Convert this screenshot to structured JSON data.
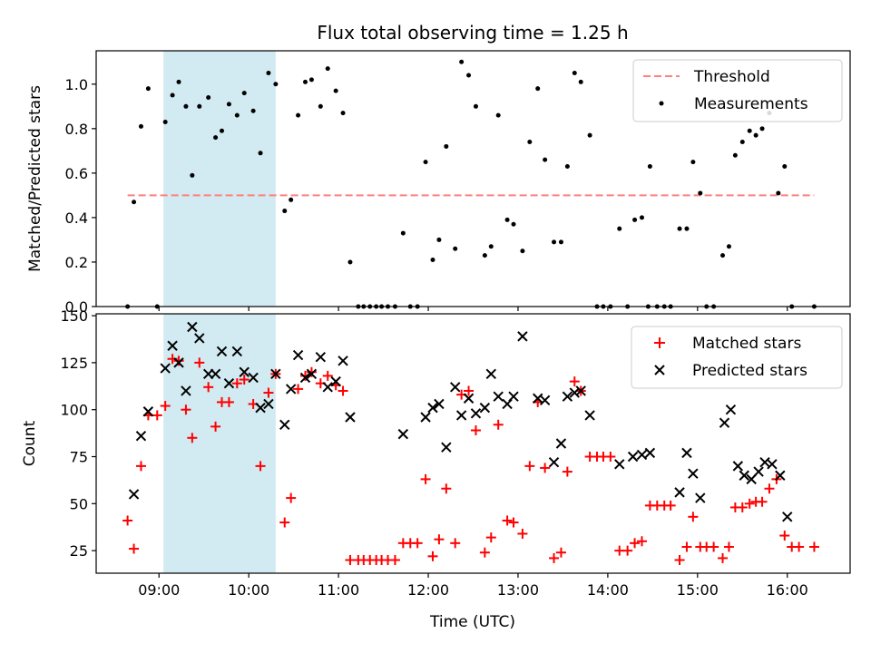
{
  "figure": {
    "title": "Flux total observing time = 1.25 h",
    "xlabel": "Time (UTC)",
    "background": "#ffffff"
  },
  "colors": {
    "threshold": "#ff7f7f",
    "measurement": "#000000",
    "matched": "#ff0000",
    "predicted": "#000000",
    "shaded_region": "#add8e6"
  },
  "chart_data": [
    {
      "type": "scatter",
      "id": "ratio",
      "title": "Flux total observing time = 1.25 h",
      "ylabel": "Matched/Predicted stars",
      "xlim": [
        8.3,
        16.7
      ],
      "ylim": [
        0,
        1.15
      ],
      "x_ticks": [
        9,
        10,
        11,
        12,
        13,
        14,
        15,
        16
      ],
      "y_ticks": [
        0.0,
        0.2,
        0.4,
        0.6,
        0.8,
        1.0
      ],
      "y_tick_labels": [
        "0.0",
        "0.2",
        "0.4",
        "0.6",
        "0.8",
        "1.0"
      ],
      "shaded_region": [
        9.05,
        10.3
      ],
      "threshold": {
        "name": "Threshold",
        "value": 0.5,
        "x_range": [
          8.65,
          16.3
        ]
      },
      "legend": {
        "position": "upper right",
        "entries": [
          "Threshold",
          "Measurements"
        ]
      },
      "series": [
        {
          "name": "Measurements",
          "marker": "dot",
          "points": [
            [
              8.65,
              0.0
            ],
            [
              8.72,
              0.47
            ],
            [
              8.8,
              0.81
            ],
            [
              8.88,
              0.98
            ],
            [
              8.98,
              0.0
            ],
            [
              9.07,
              0.83
            ],
            [
              9.15,
              0.95
            ],
            [
              9.22,
              1.01
            ],
            [
              9.3,
              0.9
            ],
            [
              9.37,
              0.59
            ],
            [
              9.45,
              0.9
            ],
            [
              9.55,
              0.94
            ],
            [
              9.63,
              0.76
            ],
            [
              9.7,
              0.79
            ],
            [
              9.78,
              0.91
            ],
            [
              9.87,
              0.86
            ],
            [
              9.95,
              0.96
            ],
            [
              10.05,
              0.88
            ],
            [
              10.13,
              0.69
            ],
            [
              10.22,
              1.05
            ],
            [
              10.3,
              1.0
            ],
            [
              10.4,
              0.43
            ],
            [
              10.47,
              0.48
            ],
            [
              10.55,
              0.86
            ],
            [
              10.63,
              1.01
            ],
            [
              10.7,
              1.02
            ],
            [
              10.8,
              0.9
            ],
            [
              10.88,
              1.07
            ],
            [
              10.97,
              0.97
            ],
            [
              11.05,
              0.87
            ],
            [
              11.13,
              0.2
            ],
            [
              11.22,
              0.0
            ],
            [
              11.28,
              0.0
            ],
            [
              11.35,
              0.0
            ],
            [
              11.42,
              0.0
            ],
            [
              11.48,
              0.0
            ],
            [
              11.55,
              0.0
            ],
            [
              11.63,
              0.0
            ],
            [
              11.72,
              0.33
            ],
            [
              11.8,
              0.0
            ],
            [
              11.88,
              0.0
            ],
            [
              11.97,
              0.65
            ],
            [
              12.05,
              0.21
            ],
            [
              12.12,
              0.3
            ],
            [
              12.2,
              0.72
            ],
            [
              12.3,
              0.26
            ],
            [
              12.37,
              1.1
            ],
            [
              12.45,
              1.04
            ],
            [
              12.53,
              0.9
            ],
            [
              12.63,
              0.23
            ],
            [
              12.7,
              0.27
            ],
            [
              12.78,
              0.86
            ],
            [
              12.88,
              0.39
            ],
            [
              12.95,
              0.37
            ],
            [
              13.05,
              0.25
            ],
            [
              13.13,
              0.74
            ],
            [
              13.22,
              0.98
            ],
            [
              13.3,
              0.66
            ],
            [
              13.4,
              0.29
            ],
            [
              13.48,
              0.29
            ],
            [
              13.55,
              0.63
            ],
            [
              13.63,
              1.05
            ],
            [
              13.7,
              1.01
            ],
            [
              13.8,
              0.77
            ],
            [
              13.88,
              0.0
            ],
            [
              13.95,
              0.0
            ],
            [
              14.03,
              0.0
            ],
            [
              14.13,
              0.35
            ],
            [
              14.22,
              0.0
            ],
            [
              14.3,
              0.39
            ],
            [
              14.38,
              0.4
            ],
            [
              14.45,
              0.0
            ],
            [
              14.47,
              0.63
            ],
            [
              14.55,
              0.0
            ],
            [
              14.63,
              0.0
            ],
            [
              14.7,
              0.0
            ],
            [
              14.8,
              0.35
            ],
            [
              14.88,
              0.35
            ],
            [
              14.95,
              0.65
            ],
            [
              15.03,
              0.51
            ],
            [
              15.1,
              0.0
            ],
            [
              15.18,
              0.0
            ],
            [
              15.28,
              0.23
            ],
            [
              15.35,
              0.27
            ],
            [
              15.42,
              0.68
            ],
            [
              15.5,
              0.74
            ],
            [
              15.58,
              0.79
            ],
            [
              15.65,
              0.77
            ],
            [
              15.72,
              0.8
            ],
            [
              15.8,
              0.87
            ],
            [
              15.9,
              0.51
            ],
            [
              15.97,
              0.63
            ],
            [
              16.05,
              0.0
            ],
            [
              16.3,
              0.0
            ]
          ]
        }
      ]
    },
    {
      "type": "scatter",
      "id": "counts",
      "ylabel": "Count",
      "xlabel": "Time (UTC)",
      "xlim": [
        8.3,
        16.7
      ],
      "ylim": [
        13,
        151
      ],
      "x_ticks": [
        9,
        10,
        11,
        12,
        13,
        14,
        15,
        16
      ],
      "x_tick_labels": [
        "09:00",
        "10:00",
        "11:00",
        "12:00",
        "13:00",
        "14:00",
        "15:00",
        "16:00"
      ],
      "y_ticks": [
        25,
        50,
        75,
        100,
        125,
        150
      ],
      "y_tick_labels": [
        "25",
        "50",
        "75",
        "100",
        "125",
        "150"
      ],
      "shaded_region": [
        9.05,
        10.3
      ],
      "legend": {
        "position": "upper right",
        "entries": [
          "Matched stars",
          "Predicted stars"
        ]
      },
      "series": [
        {
          "name": "Matched stars",
          "marker": "plus",
          "points": [
            [
              8.65,
              41
            ],
            [
              8.72,
              26
            ],
            [
              8.8,
              70
            ],
            [
              8.88,
              97
            ],
            [
              8.98,
              97
            ],
            [
              9.07,
              102
            ],
            [
              9.15,
              127
            ],
            [
              9.22,
              126
            ],
            [
              9.3,
              100
            ],
            [
              9.37,
              85
            ],
            [
              9.45,
              125
            ],
            [
              9.55,
              112
            ],
            [
              9.63,
              91
            ],
            [
              9.7,
              104
            ],
            [
              9.78,
              104
            ],
            [
              9.87,
              114
            ],
            [
              9.95,
              116
            ],
            [
              10.05,
              103
            ],
            [
              10.13,
              70
            ],
            [
              10.22,
              109
            ],
            [
              10.3,
              119
            ],
            [
              10.4,
              40
            ],
            [
              10.47,
              53
            ],
            [
              10.55,
              111
            ],
            [
              10.63,
              118
            ],
            [
              10.7,
              120
            ],
            [
              10.8,
              114
            ],
            [
              10.88,
              118
            ],
            [
              10.97,
              113
            ],
            [
              11.05,
              110
            ],
            [
              11.13,
              20
            ],
            [
              11.22,
              20
            ],
            [
              11.28,
              20
            ],
            [
              11.35,
              20
            ],
            [
              11.42,
              20
            ],
            [
              11.48,
              20
            ],
            [
              11.55,
              20
            ],
            [
              11.63,
              20
            ],
            [
              11.72,
              29
            ],
            [
              11.8,
              29
            ],
            [
              11.88,
              29
            ],
            [
              11.97,
              63
            ],
            [
              12.05,
              22
            ],
            [
              12.12,
              31
            ],
            [
              12.2,
              58
            ],
            [
              12.3,
              29
            ],
            [
              12.37,
              108
            ],
            [
              12.45,
              110
            ],
            [
              12.53,
              89
            ],
            [
              12.63,
              24
            ],
            [
              12.7,
              32
            ],
            [
              12.78,
              92
            ],
            [
              12.88,
              41
            ],
            [
              12.95,
              40
            ],
            [
              13.05,
              34
            ],
            [
              13.13,
              70
            ],
            [
              13.22,
              104
            ],
            [
              13.3,
              69
            ],
            [
              13.4,
              21
            ],
            [
              13.48,
              24
            ],
            [
              13.55,
              67
            ],
            [
              13.63,
              115
            ],
            [
              13.7,
              110
            ],
            [
              13.8,
              75
            ],
            [
              13.88,
              75
            ],
            [
              13.95,
              75
            ],
            [
              14.03,
              75
            ],
            [
              14.13,
              25
            ],
            [
              14.22,
              25
            ],
            [
              14.3,
              29
            ],
            [
              14.38,
              30
            ],
            [
              14.47,
              49
            ],
            [
              14.55,
              49
            ],
            [
              14.63,
              49
            ],
            [
              14.7,
              49
            ],
            [
              14.8,
              20
            ],
            [
              14.88,
              27
            ],
            [
              14.95,
              43
            ],
            [
              15.03,
              27
            ],
            [
              15.1,
              27
            ],
            [
              15.18,
              27
            ],
            [
              15.28,
              21
            ],
            [
              15.35,
              27
            ],
            [
              15.42,
              48
            ],
            [
              15.5,
              48
            ],
            [
              15.58,
              50
            ],
            [
              15.65,
              51
            ],
            [
              15.72,
              51
            ],
            [
              15.8,
              58
            ],
            [
              15.88,
              63
            ],
            [
              15.97,
              33
            ],
            [
              16.05,
              27
            ],
            [
              16.13,
              27
            ],
            [
              16.3,
              27
            ]
          ]
        },
        {
          "name": "Predicted stars",
          "marker": "x",
          "points": [
            [
              8.72,
              55
            ],
            [
              8.8,
              86
            ],
            [
              8.88,
              99
            ],
            [
              9.07,
              122
            ],
            [
              9.15,
              134
            ],
            [
              9.22,
              125
            ],
            [
              9.3,
              110
            ],
            [
              9.37,
              144
            ],
            [
              9.45,
              138
            ],
            [
              9.55,
              119
            ],
            [
              9.63,
              119
            ],
            [
              9.7,
              131
            ],
            [
              9.78,
              114
            ],
            [
              9.87,
              131
            ],
            [
              9.95,
              120
            ],
            [
              10.05,
              117
            ],
            [
              10.13,
              101
            ],
            [
              10.22,
              103
            ],
            [
              10.3,
              119
            ],
            [
              10.4,
              92
            ],
            [
              10.47,
              111
            ],
            [
              10.55,
              129
            ],
            [
              10.63,
              117
            ],
            [
              10.7,
              119
            ],
            [
              10.8,
              128
            ],
            [
              10.88,
              112
            ],
            [
              10.97,
              115
            ],
            [
              11.05,
              126
            ],
            [
              11.13,
              96
            ],
            [
              11.72,
              87
            ],
            [
              11.97,
              96
            ],
            [
              12.05,
              101
            ],
            [
              12.12,
              103
            ],
            [
              12.2,
              80
            ],
            [
              12.3,
              112
            ],
            [
              12.37,
              97
            ],
            [
              12.45,
              106
            ],
            [
              12.53,
              98
            ],
            [
              12.63,
              101
            ],
            [
              12.7,
              119
            ],
            [
              12.78,
              107
            ],
            [
              12.88,
              103
            ],
            [
              12.95,
              107
            ],
            [
              13.05,
              139
            ],
            [
              13.22,
              106
            ],
            [
              13.3,
              105
            ],
            [
              13.4,
              72
            ],
            [
              13.48,
              82
            ],
            [
              13.55,
              107
            ],
            [
              13.63,
              109
            ],
            [
              13.7,
              110
            ],
            [
              13.8,
              97
            ],
            [
              14.13,
              71
            ],
            [
              14.28,
              75
            ],
            [
              14.38,
              76
            ],
            [
              14.47,
              77
            ],
            [
              14.8,
              56
            ],
            [
              14.88,
              77
            ],
            [
              14.95,
              66
            ],
            [
              15.03,
              53
            ],
            [
              15.3,
              93
            ],
            [
              15.37,
              100
            ],
            [
              15.45,
              70
            ],
            [
              15.52,
              65
            ],
            [
              15.6,
              63
            ],
            [
              15.68,
              67
            ],
            [
              15.75,
              72
            ],
            [
              15.83,
              71
            ],
            [
              15.92,
              65
            ],
            [
              16.0,
              43
            ]
          ]
        }
      ]
    }
  ]
}
